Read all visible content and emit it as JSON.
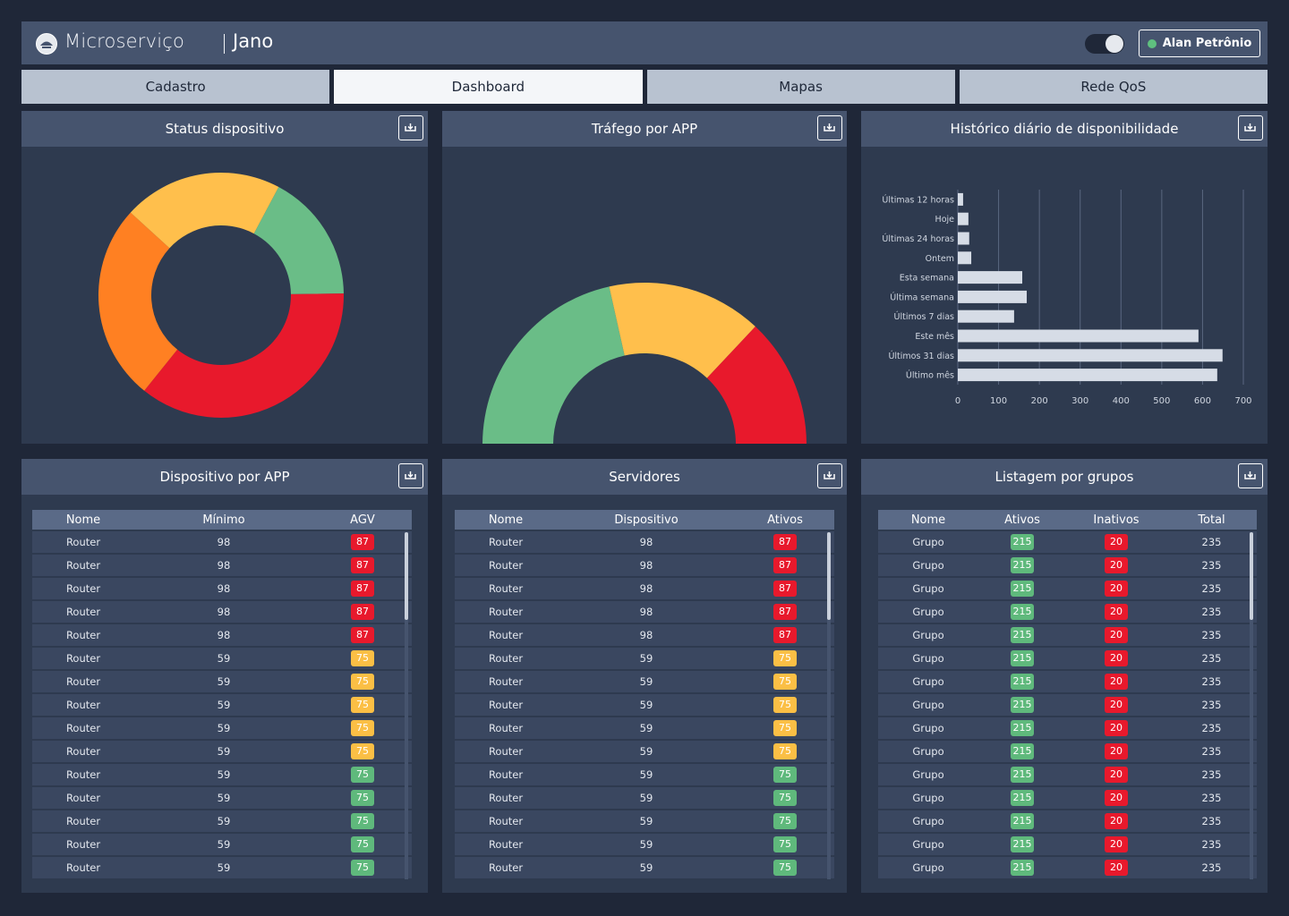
{
  "header": {
    "brand": "Microserviço",
    "product": "Jano",
    "user": "Alan Petrônio"
  },
  "tabs": [
    "Cadastro",
    "Dashboard",
    "Mapas",
    "Rede QoS"
  ],
  "active_tab": 1,
  "chart_data": [
    {
      "type": "donut",
      "title": "Status dispositivo",
      "values": [
        17,
        36,
        26,
        21
      ],
      "colors": [
        "#6abd87",
        "#e8192c",
        "#ff8022",
        "#ffbf4c"
      ]
    },
    {
      "type": "half-donut",
      "title": "Tráfego por APP",
      "values": [
        43,
        31,
        26
      ],
      "colors": [
        "#6abd87",
        "#ffbf4c",
        "#e8192c"
      ]
    },
    {
      "type": "hbar",
      "title": "Histórico diário de disponibilidade",
      "categories": [
        "Últimas 12 horas",
        "Hoje",
        "Últimas 24 horas",
        "Ontem",
        "Esta semana",
        "Última semana",
        "Últimos 7 dias",
        "Este mês",
        "Últimos 31 dias",
        "Último mês"
      ],
      "values": [
        13,
        26,
        28,
        33,
        158,
        169,
        138,
        590,
        649,
        636
      ],
      "color": "#d6dce6",
      "xlim": [
        0,
        700
      ],
      "xticks": [
        0,
        100,
        200,
        300,
        400,
        500,
        600,
        700
      ],
      "grid": true
    }
  ],
  "tables": [
    {
      "title": "Dispositivo por APP",
      "columns": [
        "Nome",
        "Mínimo",
        "AGV"
      ],
      "badge_columns": [
        2
      ],
      "rows": [
        {
          "cells": [
            "Router",
            98,
            87
          ],
          "colors": [
            "#e8192c"
          ]
        },
        {
          "cells": [
            "Router",
            98,
            87
          ],
          "colors": [
            "#e8192c"
          ]
        },
        {
          "cells": [
            "Router",
            98,
            87
          ],
          "colors": [
            "#e8192c"
          ]
        },
        {
          "cells": [
            "Router",
            98,
            87
          ],
          "colors": [
            "#e8192c"
          ]
        },
        {
          "cells": [
            "Router",
            98,
            87
          ],
          "colors": [
            "#e8192c"
          ]
        },
        {
          "cells": [
            "Router",
            59,
            75
          ],
          "colors": [
            "#fbbf45"
          ]
        },
        {
          "cells": [
            "Router",
            59,
            75
          ],
          "colors": [
            "#fbbf45"
          ]
        },
        {
          "cells": [
            "Router",
            59,
            75
          ],
          "colors": [
            "#fbbf45"
          ]
        },
        {
          "cells": [
            "Router",
            59,
            75
          ],
          "colors": [
            "#fbbf45"
          ]
        },
        {
          "cells": [
            "Router",
            59,
            75
          ],
          "colors": [
            "#fbbf45"
          ]
        },
        {
          "cells": [
            "Router",
            59,
            75
          ],
          "colors": [
            "#5fb97c"
          ]
        },
        {
          "cells": [
            "Router",
            59,
            75
          ],
          "colors": [
            "#5fb97c"
          ]
        },
        {
          "cells": [
            "Router",
            59,
            75
          ],
          "colors": [
            "#5fb97c"
          ]
        },
        {
          "cells": [
            "Router",
            59,
            75
          ],
          "colors": [
            "#5fb97c"
          ]
        },
        {
          "cells": [
            "Router",
            59,
            75
          ],
          "colors": [
            "#5fb97c"
          ]
        }
      ]
    },
    {
      "title": "Servidores",
      "columns": [
        "Nome",
        "Dispositivo",
        "Ativos"
      ],
      "badge_columns": [
        2
      ],
      "rows": [
        {
          "cells": [
            "Router",
            98,
            87
          ],
          "colors": [
            "#e8192c"
          ]
        },
        {
          "cells": [
            "Router",
            98,
            87
          ],
          "colors": [
            "#e8192c"
          ]
        },
        {
          "cells": [
            "Router",
            98,
            87
          ],
          "colors": [
            "#e8192c"
          ]
        },
        {
          "cells": [
            "Router",
            98,
            87
          ],
          "colors": [
            "#e8192c"
          ]
        },
        {
          "cells": [
            "Router",
            98,
            87
          ],
          "colors": [
            "#e8192c"
          ]
        },
        {
          "cells": [
            "Router",
            59,
            75
          ],
          "colors": [
            "#fbbf45"
          ]
        },
        {
          "cells": [
            "Router",
            59,
            75
          ],
          "colors": [
            "#fbbf45"
          ]
        },
        {
          "cells": [
            "Router",
            59,
            75
          ],
          "colors": [
            "#fbbf45"
          ]
        },
        {
          "cells": [
            "Router",
            59,
            75
          ],
          "colors": [
            "#fbbf45"
          ]
        },
        {
          "cells": [
            "Router",
            59,
            75
          ],
          "colors": [
            "#fbbf45"
          ]
        },
        {
          "cells": [
            "Router",
            59,
            75
          ],
          "colors": [
            "#5fb97c"
          ]
        },
        {
          "cells": [
            "Router",
            59,
            75
          ],
          "colors": [
            "#5fb97c"
          ]
        },
        {
          "cells": [
            "Router",
            59,
            75
          ],
          "colors": [
            "#5fb97c"
          ]
        },
        {
          "cells": [
            "Router",
            59,
            75
          ],
          "colors": [
            "#5fb97c"
          ]
        },
        {
          "cells": [
            "Router",
            59,
            75
          ],
          "colors": [
            "#5fb97c"
          ]
        }
      ]
    },
    {
      "title": "Listagem por grupos",
      "columns": [
        "Nome",
        "Ativos",
        "Inativos",
        "Total"
      ],
      "badge_columns": [
        1,
        2
      ],
      "rows": [
        {
          "cells": [
            "Grupo",
            215,
            20,
            235
          ],
          "colors": [
            "#5fb97c",
            "#e8192c"
          ]
        },
        {
          "cells": [
            "Grupo",
            215,
            20,
            235
          ],
          "colors": [
            "#5fb97c",
            "#e8192c"
          ]
        },
        {
          "cells": [
            "Grupo",
            215,
            20,
            235
          ],
          "colors": [
            "#5fb97c",
            "#e8192c"
          ]
        },
        {
          "cells": [
            "Grupo",
            215,
            20,
            235
          ],
          "colors": [
            "#5fb97c",
            "#e8192c"
          ]
        },
        {
          "cells": [
            "Grupo",
            215,
            20,
            235
          ],
          "colors": [
            "#5fb97c",
            "#e8192c"
          ]
        },
        {
          "cells": [
            "Grupo",
            215,
            20,
            235
          ],
          "colors": [
            "#5fb97c",
            "#e8192c"
          ]
        },
        {
          "cells": [
            "Grupo",
            215,
            20,
            235
          ],
          "colors": [
            "#5fb97c",
            "#e8192c"
          ]
        },
        {
          "cells": [
            "Grupo",
            215,
            20,
            235
          ],
          "colors": [
            "#5fb97c",
            "#e8192c"
          ]
        },
        {
          "cells": [
            "Grupo",
            215,
            20,
            235
          ],
          "colors": [
            "#5fb97c",
            "#e8192c"
          ]
        },
        {
          "cells": [
            "Grupo",
            215,
            20,
            235
          ],
          "colors": [
            "#5fb97c",
            "#e8192c"
          ]
        },
        {
          "cells": [
            "Grupo",
            215,
            20,
            235
          ],
          "colors": [
            "#5fb97c",
            "#e8192c"
          ]
        },
        {
          "cells": [
            "Grupo",
            215,
            20,
            235
          ],
          "colors": [
            "#5fb97c",
            "#e8192c"
          ]
        },
        {
          "cells": [
            "Grupo",
            215,
            20,
            235
          ],
          "colors": [
            "#5fb97c",
            "#e8192c"
          ]
        },
        {
          "cells": [
            "Grupo",
            215,
            20,
            235
          ],
          "colors": [
            "#5fb97c",
            "#e8192c"
          ]
        },
        {
          "cells": [
            "Grupo",
            215,
            20,
            235
          ],
          "colors": [
            "#5fb97c",
            "#e8192c"
          ]
        }
      ]
    }
  ]
}
